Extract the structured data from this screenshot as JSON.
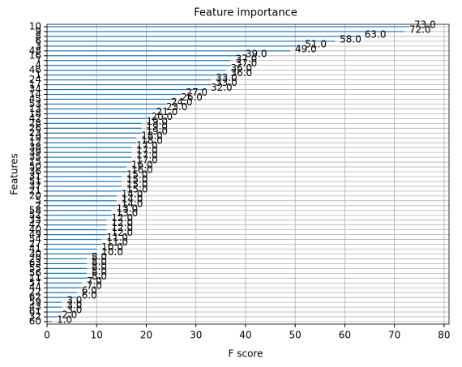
{
  "chart_data": {
    "type": "barh",
    "title": "Feature importance",
    "x_label": "F score",
    "y_label": "Features",
    "categories": [
      "10",
      "9",
      "8",
      "6",
      "3",
      "48",
      "16",
      "7",
      "4",
      "46",
      "1",
      "24",
      "17",
      "34",
      "14",
      "45",
      "53",
      "13",
      "18",
      "42",
      "28",
      "26",
      "23",
      "19",
      "12",
      "38",
      "39",
      "35",
      "15",
      "50",
      "36",
      "31",
      "51",
      "37",
      "21",
      "20",
      "5",
      "2",
      "58",
      "52",
      "33",
      "47",
      "40",
      "49",
      "54",
      "27",
      "41",
      "30",
      "29",
      "63",
      "55",
      "56",
      "11",
      "57",
      "44",
      "22",
      "62",
      "59",
      "43",
      "61",
      "32",
      "60"
    ],
    "values": [
      73,
      72,
      63,
      58,
      51,
      49,
      39,
      37,
      37,
      36,
      36,
      33,
      33,
      32,
      27,
      26,
      24,
      23,
      21,
      20,
      19,
      19,
      19,
      18,
      18,
      17,
      17,
      17,
      17,
      16,
      16,
      15,
      15,
      15,
      15,
      14,
      14,
      14,
      13,
      13,
      12,
      12,
      12,
      12,
      11,
      11,
      10,
      10,
      8,
      8,
      8,
      8,
      8,
      7,
      7,
      6,
      6,
      3,
      3,
      3,
      2,
      1
    ],
    "value_labels": [
      "73.0",
      "72.0",
      "63.0",
      "58.0",
      "51.0",
      "49.0",
      "39.0",
      "37.0",
      "37.0",
      "36.0",
      "36.0",
      "33.0",
      "33.0",
      "32.0",
      "27.0",
      "26.0",
      "24.0",
      "23.0",
      "21.0",
      "20.0",
      "19.0",
      "19.0",
      "19.0",
      "18.0",
      "18.0",
      "17.0",
      "17.0",
      "17.0",
      "17.0",
      "16.0",
      "16.0",
      "15.0",
      "15.0",
      "15.0",
      "15.0",
      "14.0",
      "14.0",
      "14.0",
      "13.0",
      "13.0",
      "12.0",
      "12.0",
      "12.0",
      "12.0",
      "11.0",
      "11.0",
      "10.0",
      "10.0",
      "8.0",
      "8.0",
      "8.0",
      "8.0",
      "8.0",
      "7.0",
      "7.0",
      "6.0",
      "6.0",
      "3.0",
      "3.0",
      "3.0",
      "2.0",
      "1.0"
    ],
    "color": "#1f77b4",
    "xlim": [
      0,
      81
    ],
    "xticks": [
      0,
      10,
      20,
      30,
      40,
      50,
      60,
      70,
      80
    ],
    "grid": true
  }
}
